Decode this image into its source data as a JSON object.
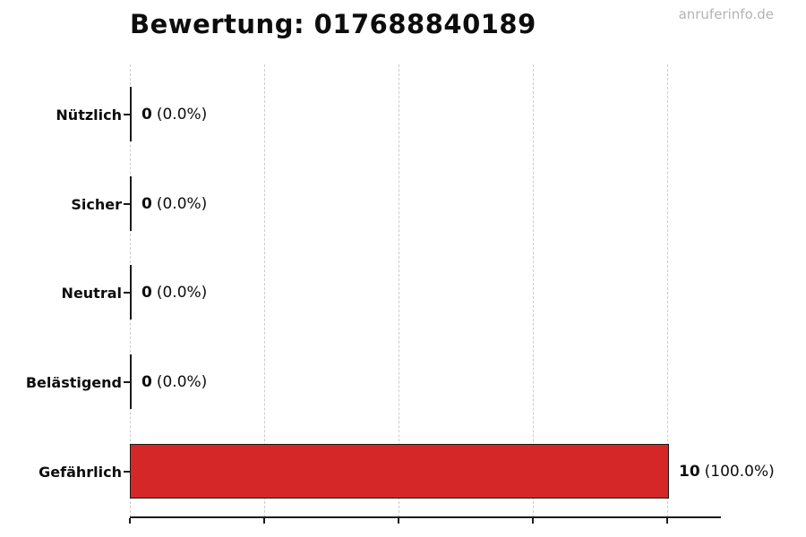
{
  "watermark": "anruferinfo.de",
  "chart_data": {
    "type": "bar",
    "orientation": "horizontal",
    "title": "Bewertung: 017688840189",
    "categories": [
      "Nützlich",
      "Sicher",
      "Neutral",
      "Belästigend",
      "Gefährlich"
    ],
    "values": [
      0,
      0,
      0,
      0,
      10
    ],
    "counts": [
      "0",
      "0",
      "0",
      "0",
      "10"
    ],
    "percents": [
      "(0.0%)",
      "(0.0%)",
      "(0.0%)",
      "(0.0%)",
      "(100.0%)"
    ],
    "xlabel": "",
    "ylabel": "",
    "xlim": [
      0,
      11
    ],
    "x_gridlines": [
      0,
      2.5,
      5,
      7.5,
      10
    ],
    "grid": "vertical dashed",
    "legend": "none",
    "bar_color": "#d62728",
    "bar_edge_color": "#1a1a1a",
    "gridline_color": "#cccccc",
    "watermark_color": "#b4b4b4"
  }
}
